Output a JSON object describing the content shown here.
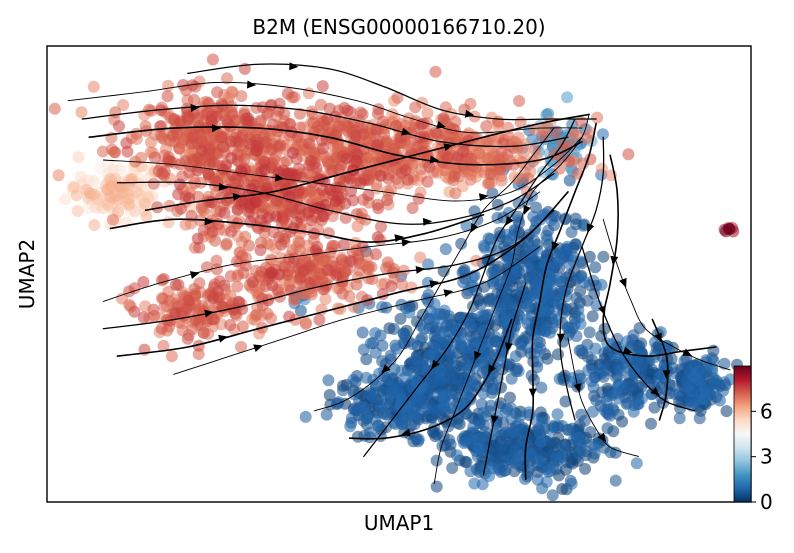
{
  "chart_data": {
    "type": "scatter",
    "title": "B2M (ENSG00000166710.20)",
    "xlabel": "UMAP1",
    "ylabel": "UMAP2",
    "xlim": [
      0,
      100
    ],
    "ylim": [
      0,
      100
    ],
    "grid": false,
    "legend": "none",
    "colorbar": {
      "cmap": "RdBu_r",
      "ticks": [
        0,
        3,
        6
      ],
      "tick_labels": [
        "0",
        "3",
        "6"
      ],
      "range": [
        0,
        9
      ],
      "placement": "bottom-right",
      "colors": [
        "#053061",
        "#2166ac",
        "#4393c3",
        "#92c5de",
        "#d1e5f0",
        "#f7f7f7",
        "#fddbc7",
        "#f4a582",
        "#d6604d",
        "#b2182b",
        "#67001f"
      ]
    },
    "clusters": [
      {
        "center": [
          10,
          68
        ],
        "spread": [
          6,
          5
        ],
        "count": 130,
        "value": [
          4.8,
          6.2
        ]
      },
      {
        "center": [
          22,
          80
        ],
        "spread": [
          10,
          9
        ],
        "count": 320,
        "value": [
          6.6,
          7.6
        ]
      },
      {
        "center": [
          32,
          66
        ],
        "spread": [
          12,
          9
        ],
        "count": 380,
        "value": [
          6.6,
          7.8
        ]
      },
      {
        "center": [
          44,
          78
        ],
        "spread": [
          14,
          8
        ],
        "count": 360,
        "value": [
          6.6,
          7.6
        ]
      },
      {
        "center": [
          60,
          76
        ],
        "spread": [
          12,
          7
        ],
        "count": 260,
        "value": [
          6.4,
          7.4
        ]
      },
      {
        "center": [
          22,
          42
        ],
        "spread": [
          9,
          6
        ],
        "count": 150,
        "value": [
          6.6,
          7.6
        ]
      },
      {
        "center": [
          38,
          50
        ],
        "spread": [
          10,
          6
        ],
        "count": 200,
        "value": [
          6.6,
          7.6
        ]
      },
      {
        "center": [
          73,
          78
        ],
        "spread": [
          4,
          5
        ],
        "count": 70,
        "value": [
          0.8,
          2.4
        ]
      },
      {
        "center": [
          69,
          48
        ],
        "spread": [
          7,
          14
        ],
        "count": 420,
        "value": [
          0.1,
          1.0
        ]
      },
      {
        "center": [
          58,
          32
        ],
        "spread": [
          9,
          12
        ],
        "count": 380,
        "value": [
          0.1,
          1.0
        ]
      },
      {
        "center": [
          50,
          22
        ],
        "spread": [
          8,
          6
        ],
        "count": 240,
        "value": [
          0.1,
          1.0
        ]
      },
      {
        "center": [
          68,
          12
        ],
        "spread": [
          9,
          7
        ],
        "count": 300,
        "value": [
          0.1,
          1.0
        ]
      },
      {
        "center": [
          82,
          28
        ],
        "spread": [
          6,
          7
        ],
        "count": 180,
        "value": [
          0.1,
          1.0
        ]
      },
      {
        "center": [
          92,
          26
        ],
        "spread": [
          4,
          5
        ],
        "count": 140,
        "value": [
          0.1,
          1.0
        ]
      },
      {
        "center": [
          36,
          45
        ],
        "spread": [
          1.5,
          1.5
        ],
        "count": 10,
        "value": [
          0.5,
          2.0
        ]
      },
      {
        "center": [
          97,
          60
        ],
        "spread": [
          0.8,
          0.6
        ],
        "count": 7,
        "value": [
          8.0,
          9.0
        ]
      }
    ],
    "streamlines": [
      [
        [
          3,
          88
        ],
        [
          14,
          90
        ],
        [
          24,
          92
        ],
        [
          34,
          91
        ],
        [
          44,
          88
        ],
        [
          52,
          84
        ],
        [
          60,
          81
        ],
        [
          70,
          82
        ],
        [
          76,
          82
        ]
      ],
      [
        [
          5,
          84
        ],
        [
          16,
          86
        ],
        [
          26,
          87
        ],
        [
          36,
          86
        ],
        [
          46,
          83
        ],
        [
          56,
          79
        ],
        [
          66,
          78
        ],
        [
          74,
          80
        ]
      ],
      [
        [
          6,
          80
        ],
        [
          18,
          82
        ],
        [
          30,
          82
        ],
        [
          40,
          80
        ],
        [
          50,
          76
        ],
        [
          60,
          74
        ],
        [
          70,
          75
        ],
        [
          76,
          79
        ]
      ],
      [
        [
          8,
          75
        ],
        [
          18,
          74
        ],
        [
          28,
          72
        ],
        [
          38,
          70
        ],
        [
          48,
          68
        ],
        [
          58,
          66
        ],
        [
          66,
          68
        ],
        [
          72,
          74
        ],
        [
          76,
          80
        ]
      ],
      [
        [
          10,
          70
        ],
        [
          20,
          70
        ],
        [
          30,
          68
        ],
        [
          40,
          64
        ],
        [
          50,
          61
        ],
        [
          58,
          62
        ],
        [
          66,
          66
        ],
        [
          72,
          72
        ]
      ],
      [
        [
          9,
          60
        ],
        [
          18,
          62
        ],
        [
          28,
          61
        ],
        [
          38,
          59
        ],
        [
          46,
          57
        ],
        [
          54,
          59
        ],
        [
          62,
          63
        ]
      ],
      [
        [
          8,
          44
        ],
        [
          16,
          48
        ],
        [
          26,
          52
        ],
        [
          36,
          54
        ],
        [
          46,
          56
        ],
        [
          56,
          58
        ],
        [
          64,
          62
        ],
        [
          70,
          68
        ]
      ],
      [
        [
          8,
          38
        ],
        [
          18,
          40
        ],
        [
          28,
          43
        ],
        [
          38,
          47
        ],
        [
          48,
          50
        ],
        [
          58,
          52
        ],
        [
          66,
          56
        ],
        [
          72,
          64
        ]
      ],
      [
        [
          10,
          32
        ],
        [
          20,
          34
        ],
        [
          30,
          38
        ],
        [
          40,
          42
        ],
        [
          50,
          46
        ],
        [
          60,
          50
        ],
        [
          68,
          58
        ],
        [
          74,
          68
        ]
      ],
      [
        [
          18,
          28
        ],
        [
          26,
          32
        ],
        [
          34,
          36
        ],
        [
          42,
          40
        ],
        [
          52,
          44
        ],
        [
          62,
          48
        ],
        [
          70,
          56
        ]
      ],
      [
        [
          20,
          94
        ],
        [
          30,
          96
        ],
        [
          40,
          95
        ],
        [
          48,
          91
        ],
        [
          56,
          86
        ],
        [
          64,
          84
        ],
        [
          72,
          84
        ],
        [
          78,
          84
        ]
      ],
      [
        [
          14,
          64
        ],
        [
          22,
          66
        ],
        [
          32,
          68
        ],
        [
          42,
          72
        ],
        [
          52,
          76
        ],
        [
          62,
          80
        ],
        [
          70,
          83
        ],
        [
          77,
          85
        ]
      ],
      [
        [
          77,
          85
        ],
        [
          76,
          80
        ],
        [
          73,
          74
        ],
        [
          69,
          68
        ],
        [
          67,
          60
        ],
        [
          66,
          52
        ],
        [
          64,
          44
        ],
        [
          62,
          36
        ],
        [
          60,
          28
        ],
        [
          58,
          20
        ],
        [
          56,
          12
        ],
        [
          55,
          4
        ]
      ],
      [
        [
          75,
          84
        ],
        [
          73,
          78
        ],
        [
          70,
          72
        ],
        [
          67,
          65
        ],
        [
          64,
          58
        ],
        [
          62,
          50
        ],
        [
          60,
          42
        ],
        [
          57,
          34
        ],
        [
          53,
          26
        ],
        [
          49,
          18
        ],
        [
          45,
          10
        ]
      ],
      [
        [
          78,
          83
        ],
        [
          77,
          76
        ],
        [
          75,
          68
        ],
        [
          73,
          60
        ],
        [
          71,
          52
        ],
        [
          70,
          44
        ],
        [
          69,
          36
        ],
        [
          69,
          28
        ],
        [
          69,
          20
        ],
        [
          68,
          12
        ],
        [
          68,
          5
        ]
      ],
      [
        [
          72,
          82
        ],
        [
          69,
          76
        ],
        [
          66,
          70
        ],
        [
          62,
          64
        ],
        [
          59,
          56
        ],
        [
          56,
          48
        ],
        [
          53,
          40
        ],
        [
          50,
          32
        ],
        [
          46,
          26
        ],
        [
          42,
          22
        ],
        [
          38,
          20
        ]
      ],
      [
        [
          79,
          80
        ],
        [
          79,
          72
        ],
        [
          78,
          64
        ],
        [
          76,
          56
        ],
        [
          74,
          48
        ],
        [
          73,
          40
        ],
        [
          73,
          32
        ],
        [
          74,
          24
        ],
        [
          75,
          18
        ]
      ],
      [
        [
          80,
          76
        ],
        [
          81,
          68
        ],
        [
          81,
          58
        ],
        [
          80,
          48
        ],
        [
          79,
          40
        ],
        [
          80,
          34
        ],
        [
          85,
          32
        ],
        [
          90,
          33
        ],
        [
          95,
          34
        ]
      ],
      [
        [
          79,
          62
        ],
        [
          81,
          52
        ],
        [
          83,
          44
        ],
        [
          85,
          38
        ],
        [
          89,
          34
        ],
        [
          93,
          31
        ],
        [
          97,
          29
        ]
      ],
      [
        [
          76,
          56
        ],
        [
          78,
          46
        ],
        [
          80,
          38
        ],
        [
          82,
          32
        ],
        [
          85,
          26
        ],
        [
          88,
          22
        ],
        [
          92,
          20
        ]
      ],
      [
        [
          66,
          40
        ],
        [
          64,
          32
        ],
        [
          62,
          26
        ],
        [
          59,
          20
        ],
        [
          54,
          16
        ],
        [
          48,
          14
        ],
        [
          43,
          14
        ]
      ],
      [
        [
          74,
          36
        ],
        [
          75,
          28
        ],
        [
          76,
          22
        ],
        [
          78,
          16
        ],
        [
          80,
          12
        ],
        [
          84,
          10
        ]
      ],
      [
        [
          68,
          48
        ],
        [
          66,
          38
        ],
        [
          65,
          30
        ],
        [
          64,
          22
        ],
        [
          63,
          14
        ],
        [
          62,
          6
        ]
      ],
      [
        [
          86,
          40
        ],
        [
          88,
          32
        ],
        [
          88,
          24
        ],
        [
          87,
          18
        ]
      ]
    ]
  }
}
